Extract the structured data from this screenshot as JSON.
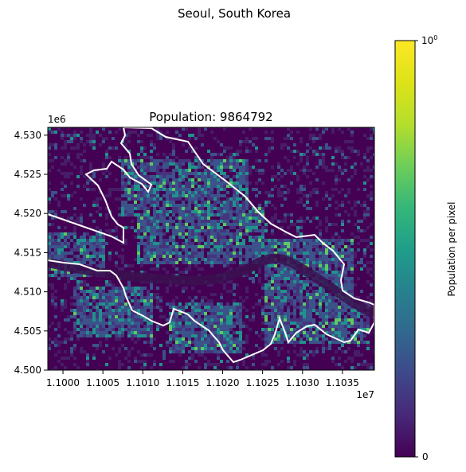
{
  "figure": {
    "suptitle": "Seoul, South Korea"
  },
  "chart_data": {
    "type": "heatmap",
    "title": "Population: 9864792",
    "x_ticks": [
      "1.1000",
      "1.1005",
      "1.1010",
      "1.1015",
      "1.1020",
      "1.1025",
      "1.1030",
      "1.1035"
    ],
    "x_tick_values": [
      11000000,
      11005000,
      11010000,
      11015000,
      11020000,
      11025000,
      11030000,
      11035000
    ],
    "x_offset_label": "1e7",
    "xlim": [
      10998100,
      11039000
    ],
    "y_ticks": [
      "4.500",
      "4.505",
      "4.510",
      "4.515",
      "4.520",
      "4.525",
      "4.530"
    ],
    "y_tick_values": [
      4500000,
      4505000,
      4510000,
      4515000,
      4520000,
      4525000,
      4530000
    ],
    "y_offset_label": "1e6",
    "ylim": [
      4500000,
      4531000
    ],
    "colormap": "viridis",
    "colorbar": {
      "label": "Population per pixel",
      "tick_min": "0",
      "tick_max_base": "10",
      "tick_max_exp": "0",
      "range": [
        0,
        1
      ]
    },
    "boundary_color": "#ffffff",
    "colors": {
      "background": "#440154",
      "dark": "#3b0f4f",
      "mid": "#3b528b",
      "teal": "#21918c",
      "bright": "#5ec962"
    }
  }
}
